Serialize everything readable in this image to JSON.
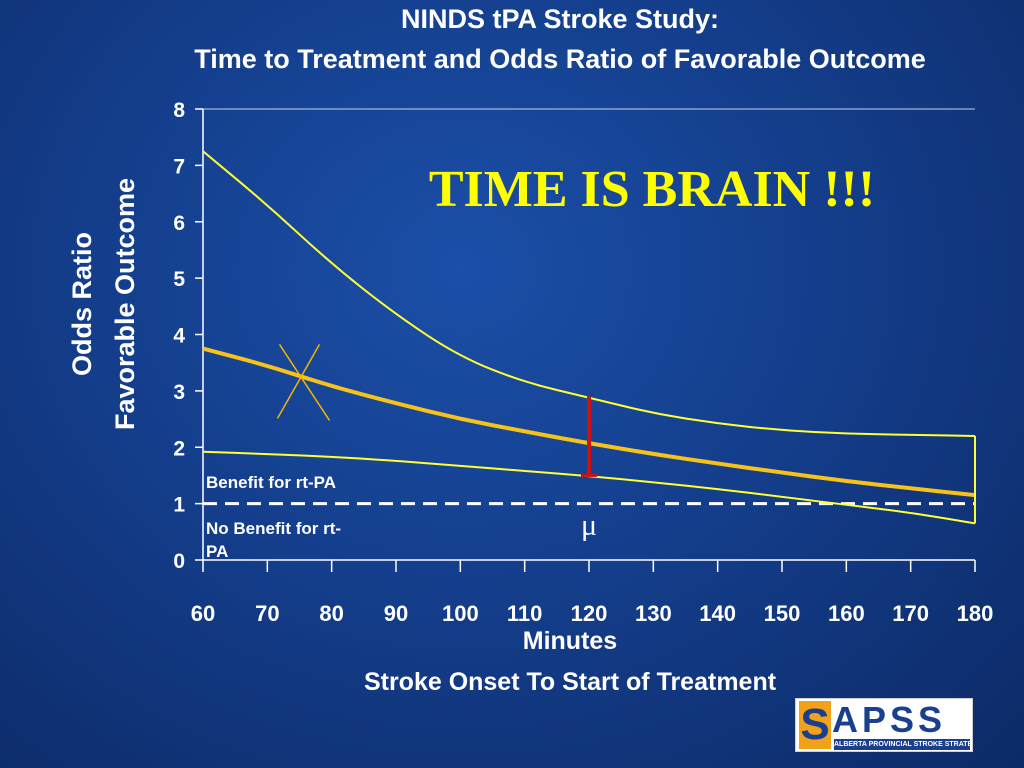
{
  "chart_data": {
    "type": "line",
    "title": "NINDS tPA Stroke Study:",
    "subtitle": "Time to Treatment and Odds Ratio of Favorable Outcome",
    "xlabel": "Minutes",
    "xlabel2": "Stroke Onset To Start of Treatment",
    "ylabel": "Odds Ratio",
    "ylabel2": "Favorable Outcome",
    "xlim": [
      60,
      180
    ],
    "ylim": [
      0,
      8
    ],
    "x_ticks": [
      60,
      70,
      80,
      90,
      100,
      110,
      120,
      130,
      140,
      150,
      160,
      170,
      180
    ],
    "y_ticks": [
      0,
      1,
      2,
      3,
      4,
      5,
      6,
      7,
      8
    ],
    "x_tick_labels": [
      "60",
      "70",
      "80",
      "90",
      "100",
      "110",
      "120",
      "130",
      "140",
      "150",
      "160",
      "170",
      "180"
    ],
    "y_tick_labels": [
      "0",
      "1",
      "2",
      "3",
      "4",
      "5",
      "6",
      "7",
      "8"
    ],
    "grid": "horizontal at 8 only",
    "series": [
      {
        "role": "upper bound",
        "x": [
          60,
          70,
          80,
          90,
          100,
          110,
          120,
          130,
          140,
          150,
          160,
          170,
          180
        ],
        "y": [
          7.25,
          6.3,
          5.25,
          4.35,
          3.6,
          3.15,
          2.88,
          2.6,
          2.42,
          2.3,
          2.24,
          2.22,
          2.2
        ]
      },
      {
        "role": "estimate",
        "x": [
          60,
          70,
          80,
          90,
          100,
          110,
          120,
          130,
          140,
          150,
          160,
          170,
          180
        ],
        "y": [
          3.75,
          3.45,
          3.08,
          2.78,
          2.5,
          2.28,
          2.07,
          1.88,
          1.71,
          1.55,
          1.4,
          1.27,
          1.15
        ]
      },
      {
        "role": "lower bound",
        "x": [
          60,
          70,
          80,
          90,
          100,
          110,
          120,
          130,
          140,
          150,
          160,
          170,
          180
        ],
        "y": [
          1.92,
          1.88,
          1.83,
          1.76,
          1.67,
          1.58,
          1.49,
          1.38,
          1.26,
          1.12,
          0.98,
          0.84,
          0.65
        ]
      }
    ],
    "reference_line": {
      "y": 1,
      "style": "dashed",
      "color": "#ffffff"
    },
    "error_bar": {
      "x": 120,
      "y_low": 1.5,
      "y_high": 2.9,
      "color": "#cc1111"
    },
    "x_marker": {
      "x": 75,
      "y": 3.15,
      "color": "#f4b400"
    },
    "annotations": {
      "headline": "TIME IS BRAIN !!!",
      "benefit": "Benefit for rt-PA",
      "no_benefit": "No Benefit for rt-PA",
      "mu": "μ",
      "mu_x": 120,
      "mu_y": 0.45
    },
    "colors": {
      "upper_lower": "#ffff33",
      "estimate": "#f7c21a",
      "text_headline": "#ffff00"
    }
  },
  "logo": {
    "letter": "S",
    "word": "APSS",
    "subtitle": "ALBERTA PROVINCIAL STROKE STRATEGY"
  }
}
